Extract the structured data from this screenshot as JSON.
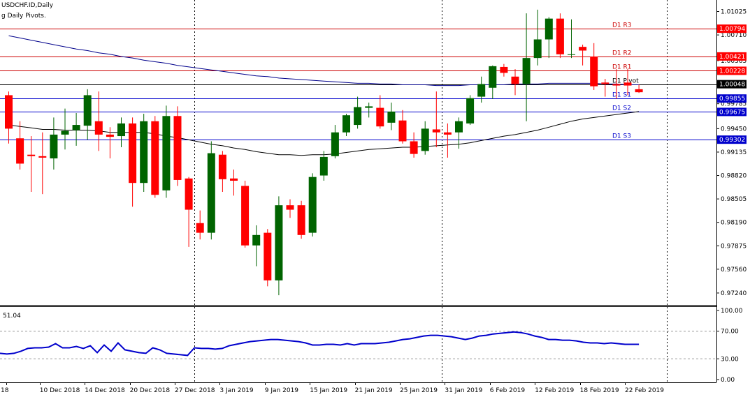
{
  "header": {
    "symbol_line": "USDCHF.ID,Daily",
    "indicator_line": "g Daily Pivots."
  },
  "colors": {
    "bull": "#006400",
    "bear": "#ff0000",
    "resistance": "#cc0000",
    "support": "#0000cc",
    "pivot": "#000000",
    "ma_long": "#00008b",
    "ma_short": "#000000",
    "rsi": "#0000cc",
    "tag_red": "#ff0000",
    "tag_blue": "#0000cc",
    "tag_black": "#000000"
  },
  "price_axis": {
    "ticks": [
      "1.01025",
      "1.00710",
      "1.00365",
      "0.99785",
      "0.99450",
      "0.99135",
      "0.98820",
      "0.98505",
      "0.98190",
      "0.97875",
      "0.97560",
      "0.97240"
    ]
  },
  "pivots": [
    {
      "label": "D1 R3",
      "value": "1.00794",
      "kind": "resistance"
    },
    {
      "label": "D1 R2",
      "value": "1.00421",
      "kind": "resistance"
    },
    {
      "label": "D1 R1",
      "value": "1.00228",
      "kind": "resistance"
    },
    {
      "label": "D1 Pivot",
      "value": "1.00048",
      "kind": "pivot"
    },
    {
      "label": "D1 S1",
      "value": "0.99855",
      "kind": "support"
    },
    {
      "label": "D1 S2",
      "value": "0.99675",
      "kind": "support"
    },
    {
      "label": "D1 S3",
      "value": "0.99302",
      "kind": "support"
    }
  ],
  "rsi_panel": {
    "value_label": "51.04",
    "ticks": [
      "100.00",
      "70.00",
      "30.00",
      "0.00"
    ]
  },
  "x_axis": {
    "labels": [
      {
        "text": "18",
        "i": -1
      },
      {
        "text": "10 Dec 2018",
        "i": 3
      },
      {
        "text": "14 Dec 2018",
        "i": 7
      },
      {
        "text": "20 Dec 2018",
        "i": 11
      },
      {
        "text": "27 Dec 2018",
        "i": 15
      },
      {
        "text": "3 Jan 2019",
        "i": 19
      },
      {
        "text": "9 Jan 2019",
        "i": 23
      },
      {
        "text": "15 Jan 2019",
        "i": 27
      },
      {
        "text": "21 Jan 2019",
        "i": 31
      },
      {
        "text": "25 Jan 2019",
        "i": 35
      },
      {
        "text": "31 Jan 2019",
        "i": 39
      },
      {
        "text": "6 Feb 2019",
        "i": 43
      },
      {
        "text": "12 Feb 2019",
        "i": 47
      },
      {
        "text": "18 Feb 2019",
        "i": 51
      },
      {
        "text": "22 Feb 2019",
        "i": 55
      }
    ],
    "period_separators": [
      17,
      39,
      59
    ]
  },
  "chart_data": {
    "type": "candlestick",
    "title": "USDCHF.ID,Daily",
    "ylim": [
      0.9708,
      1.0118
    ],
    "candles": [
      {
        "o": 0.999,
        "h": 0.9995,
        "l": 0.9925,
        "c": 0.9945
      },
      {
        "o": 0.9932,
        "h": 0.9955,
        "l": 0.989,
        "c": 0.9898
      },
      {
        "o": 0.991,
        "h": 0.9935,
        "l": 0.986,
        "c": 0.9908
      },
      {
        "o": 0.9908,
        "h": 0.994,
        "l": 0.9857,
        "c": 0.9906
      },
      {
        "o": 0.9905,
        "h": 0.996,
        "l": 0.989,
        "c": 0.9937
      },
      {
        "o": 0.9937,
        "h": 0.9972,
        "l": 0.9917,
        "c": 0.9942
      },
      {
        "o": 0.9943,
        "h": 0.9966,
        "l": 0.9922,
        "c": 0.995
      },
      {
        "o": 0.9949,
        "h": 0.9998,
        "l": 0.993,
        "c": 0.999
      },
      {
        "o": 0.9955,
        "h": 0.9995,
        "l": 0.9915,
        "c": 0.9937
      },
      {
        "o": 0.9937,
        "h": 0.9947,
        "l": 0.9905,
        "c": 0.9934
      },
      {
        "o": 0.9935,
        "h": 0.996,
        "l": 0.992,
        "c": 0.9952
      },
      {
        "o": 0.9952,
        "h": 0.996,
        "l": 0.984,
        "c": 0.9872
      },
      {
        "o": 0.9872,
        "h": 0.9965,
        "l": 0.986,
        "c": 0.9955
      },
      {
        "o": 0.9955,
        "h": 0.9962,
        "l": 0.9852,
        "c": 0.9856
      },
      {
        "o": 0.9862,
        "h": 0.9976,
        "l": 0.9852,
        "c": 0.9962
      },
      {
        "o": 0.9962,
        "h": 0.9975,
        "l": 0.9868,
        "c": 0.9876
      },
      {
        "o": 0.9878,
        "h": 0.988,
        "l": 0.9786,
        "c": 0.9836
      },
      {
        "o": 0.9818,
        "h": 0.9835,
        "l": 0.9796,
        "c": 0.9805
      },
      {
        "o": 0.9805,
        "h": 0.9928,
        "l": 0.9796,
        "c": 0.9912
      },
      {
        "o": 0.991,
        "h": 0.9915,
        "l": 0.986,
        "c": 0.9877
      },
      {
        "o": 0.9878,
        "h": 0.989,
        "l": 0.9855,
        "c": 0.9875
      },
      {
        "o": 0.9868,
        "h": 0.9875,
        "l": 0.9785,
        "c": 0.9788
      },
      {
        "o": 0.9788,
        "h": 0.9815,
        "l": 0.976,
        "c": 0.9802
      },
      {
        "o": 0.9805,
        "h": 0.981,
        "l": 0.9733,
        "c": 0.9741
      },
      {
        "o": 0.9741,
        "h": 0.9854,
        "l": 0.9721,
        "c": 0.9842
      },
      {
        "o": 0.9842,
        "h": 0.985,
        "l": 0.9825,
        "c": 0.9836
      },
      {
        "o": 0.9842,
        "h": 0.9848,
        "l": 0.9797,
        "c": 0.9802
      },
      {
        "o": 0.9805,
        "h": 0.9885,
        "l": 0.98,
        "c": 0.988
      },
      {
        "o": 0.9882,
        "h": 0.9915,
        "l": 0.9875,
        "c": 0.9907
      },
      {
        "o": 0.9908,
        "h": 0.995,
        "l": 0.9905,
        "c": 0.994
      },
      {
        "o": 0.994,
        "h": 0.9965,
        "l": 0.9935,
        "c": 0.9963
      },
      {
        "o": 0.995,
        "h": 0.9988,
        "l": 0.9945,
        "c": 0.9974
      },
      {
        "o": 0.9973,
        "h": 0.998,
        "l": 0.996,
        "c": 0.9975
      },
      {
        "o": 0.9973,
        "h": 0.999,
        "l": 0.9945,
        "c": 0.9948
      },
      {
        "o": 0.9953,
        "h": 0.998,
        "l": 0.9943,
        "c": 0.9968
      },
      {
        "o": 0.9956,
        "h": 0.997,
        "l": 0.9925,
        "c": 0.9928
      },
      {
        "o": 0.9928,
        "h": 0.994,
        "l": 0.9906,
        "c": 0.9911
      },
      {
        "o": 0.9915,
        "h": 0.9955,
        "l": 0.991,
        "c": 0.9945
      },
      {
        "o": 0.9944,
        "h": 0.9995,
        "l": 0.992,
        "c": 0.994
      },
      {
        "o": 0.994,
        "h": 0.9952,
        "l": 0.9906,
        "c": 0.9937
      },
      {
        "o": 0.994,
        "h": 0.996,
        "l": 0.9918,
        "c": 0.9955
      },
      {
        "o": 0.9952,
        "h": 0.999,
        "l": 0.995,
        "c": 0.9986
      },
      {
        "o": 0.9988,
        "h": 1.0015,
        "l": 0.998,
        "c": 1.0005
      },
      {
        "o": 1.0,
        "h": 1.003,
        "l": 0.9985,
        "c": 1.0029
      },
      {
        "o": 1.0028,
        "h": 1.0032,
        "l": 1.0015,
        "c": 1.002
      },
      {
        "o": 1.0015,
        "h": 1.0025,
        "l": 0.999,
        "c": 1.0005
      },
      {
        "o": 1.0005,
        "h": 1.01,
        "l": 0.9955,
        "c": 1.004
      },
      {
        "o": 1.004,
        "h": 1.0105,
        "l": 1.003,
        "c": 1.0065
      },
      {
        "o": 1.0065,
        "h": 1.0095,
        "l": 1.004,
        "c": 1.0093
      },
      {
        "o": 1.0093,
        "h": 1.01,
        "l": 1.004,
        "c": 1.0045
      },
      {
        "o": 1.0045,
        "h": 1.0092,
        "l": 1.004,
        "c": 1.0045
      },
      {
        "o": 1.0055,
        "h": 1.0058,
        "l": 1.003,
        "c": 1.005
      },
      {
        "o": 1.0042,
        "h": 1.006,
        "l": 0.9997,
        "c": 1.0002
      },
      {
        "o": 1.0007,
        "h": 1.0012,
        "l": 0.9988,
        "c": 1.0005
      },
      {
        "o": 1.0005,
        "h": 1.0025,
        "l": 0.9985,
        "c": 1.0003
      },
      {
        "o": 1.0007,
        "h": 1.0025,
        "l": 0.999,
        "c": 1.0003
      },
      {
        "o": 0.9998,
        "h": 1.0004,
        "l": 0.9993,
        "c": 0.9994
      }
    ],
    "ma_long": [
      1.007,
      1.0067,
      1.0064,
      1.0061,
      1.0058,
      1.0055,
      1.0052,
      1.005,
      1.0047,
      1.0045,
      1.0042,
      1.004,
      1.0037,
      1.0035,
      1.0033,
      1.003,
      1.0028,
      1.0026,
      1.0024,
      1.0022,
      1.002,
      1.0018,
      1.0016,
      1.0015,
      1.0013,
      1.0012,
      1.0011,
      1.001,
      1.0009,
      1.0008,
      1.0007,
      1.0006,
      1.0006,
      1.0005,
      1.0005,
      1.0004,
      1.0004,
      1.0004,
      1.0003,
      1.0003,
      1.0003,
      1.0004,
      1.0004,
      1.0004,
      1.0004,
      1.0005,
      1.0005,
      1.0005,
      1.0006,
      1.0006,
      1.0006,
      1.0006,
      1.0006,
      1.0005,
      1.0005,
      1.0004,
      1.0004
    ],
    "ma_short": [
      0.995,
      0.9948,
      0.9946,
      0.9944,
      0.9944,
      0.9943,
      0.9943,
      0.9943,
      0.9942,
      0.994,
      0.994,
      0.994,
      0.994,
      0.9938,
      0.9935,
      0.9933,
      0.993,
      0.9927,
      0.9924,
      0.9922,
      0.9919,
      0.9917,
      0.9914,
      0.9912,
      0.991,
      0.991,
      0.9909,
      0.991,
      0.991,
      0.9911,
      0.9913,
      0.9915,
      0.9917,
      0.9918,
      0.9919,
      0.992,
      0.992,
      0.9921,
      0.9922,
      0.9923,
      0.9924,
      0.9926,
      0.9929,
      0.9932,
      0.9935,
      0.9937,
      0.994,
      0.9943,
      0.9947,
      0.9951,
      0.9955,
      0.9958,
      0.996,
      0.9962,
      0.9964,
      0.9966,
      0.9968
    ],
    "rsi": [
      38,
      37,
      38,
      41,
      45,
      46,
      46,
      47,
      52,
      46,
      46,
      48,
      45,
      49,
      39,
      50,
      41,
      53,
      43,
      41,
      39,
      38,
      46,
      43,
      38,
      37,
      36,
      35,
      46,
      45,
      45,
      44,
      45,
      49,
      51,
      53,
      55,
      56,
      57,
      58,
      58,
      57,
      56,
      55,
      53,
      50,
      50,
      51,
      51,
      50,
      52,
      50,
      52,
      52,
      52,
      53,
      54,
      56,
      58,
      59,
      61,
      63,
      64,
      64,
      63,
      62,
      60,
      58,
      60,
      63,
      64,
      66,
      67,
      68,
      69,
      68,
      66,
      63,
      61,
      58,
      58,
      57,
      57,
      56,
      54,
      53,
      53,
      52,
      53,
      52,
      51,
      51,
      51
    ],
    "rsi_ylim": [
      0,
      100
    ],
    "rsi_levels": [
      30,
      70
    ]
  }
}
